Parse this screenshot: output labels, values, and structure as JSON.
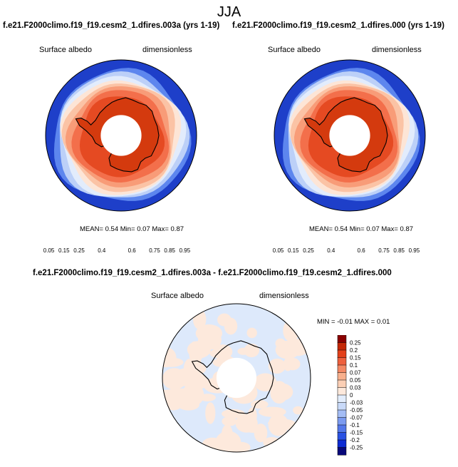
{
  "page": {
    "title": "JJA",
    "diff_title": "f.e21.F2000climo.f19_f19.cesm2_1.dfires.003a - f.e21.F2000climo.f19_f19.cesm2_1.dfires.000"
  },
  "panels": [
    {
      "case_title": "f.e21.F2000climo.f19_f19.cesm2_1.dfires.003a (yrs 1-19)",
      "variable": "Surface albedo",
      "units": "dimensionless",
      "stats": "MEAN=   0.54  Min=   0.07  Max=   0.87"
    },
    {
      "case_title": "f.e21.F2000climo.f19_f19.cesm2_1.dfires.000 (yrs 1-19)",
      "variable": "Surface albedo",
      "units": "dimensionless",
      "stats": "MEAN=   0.54  Min=   0.07  Max=   0.87"
    }
  ],
  "diff_panel": {
    "variable": "Surface albedo",
    "units": "dimensionless",
    "stats": "MIN =  -0.01 MAX =   0.01"
  },
  "colors": {
    "abs_palette": [
      "#08089a",
      "#0c2ad6",
      "#2f5ae8",
      "#5d86ee",
      "#8eaef4",
      "#bcd0f8",
      "#e2ecfc",
      "#fde5d6",
      "#fbc3a5",
      "#f89c78",
      "#f36f4b",
      "#e54a22",
      "#cc2d0a",
      "#8a0000"
    ],
    "diff_palette": [
      "#08087a",
      "#0d2bd3",
      "#2a52e3",
      "#5478ea",
      "#7c9bf0",
      "#a4bdf5",
      "#c9daf9",
      "#e3edfc",
      "#fde9dc",
      "#fbcfb5",
      "#f8b08d",
      "#f48965",
      "#ee603d",
      "#e3401a",
      "#c42806",
      "#8a0000"
    ],
    "ocean_blue": "#1e3fc9",
    "ice_red": "#e2431a",
    "land_dark": "#d43a0e",
    "diff_positive": "#fde9dc",
    "diff_negative": "#dde9fb",
    "coastline": "#000000"
  },
  "chart_data": [
    {
      "type": "heatmap",
      "projection": "south polar stereographic",
      "variable": "Surface albedo",
      "units": "dimensionless",
      "stats": {
        "mean": 0.54,
        "min": 0.07,
        "max": 0.87
      },
      "colorbar_levels": [
        "0.05",
        "0.15",
        "0.25",
        "0.4",
        "0.6",
        "0.75",
        "0.85",
        "0.95"
      ],
      "colorbar_range": [
        0,
        1
      ]
    },
    {
      "type": "heatmap",
      "projection": "south polar stereographic",
      "variable": "Surface albedo",
      "units": "dimensionless",
      "stats": {
        "mean": 0.54,
        "min": 0.07,
        "max": 0.87
      },
      "colorbar_levels": [
        "0.05",
        "0.15",
        "0.25",
        "0.4",
        "0.6",
        "0.75",
        "0.85",
        "0.95"
      ],
      "colorbar_range": [
        0,
        1
      ]
    },
    {
      "type": "heatmap",
      "projection": "south polar stereographic",
      "variable": "Surface albedo",
      "units": "dimensionless",
      "stats": {
        "min": -0.01,
        "max": 0.01
      },
      "colorbar_levels": [
        "0.25",
        "0.2",
        "0.15",
        "0.1",
        "0.07",
        "0.05",
        "0.03",
        "0",
        "-0.03",
        "-0.05",
        "-0.07",
        "-0.1",
        "-0.15",
        "-0.2",
        "-0.25"
      ],
      "colorbar_range": [
        -0.3,
        0.3
      ]
    }
  ]
}
